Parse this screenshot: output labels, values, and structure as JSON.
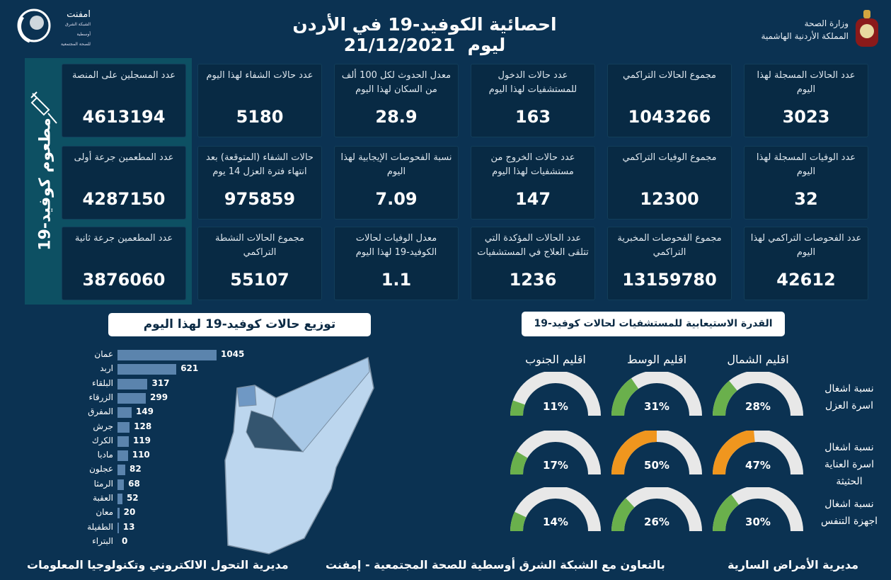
{
  "header": {
    "title": "احصائية الكوفيد-19 في الأردن ليوم",
    "date": "21/12/2021",
    "ministry_line1": "وزارة الصحة",
    "ministry_line2": "المملكة الأردنية الهاشمية",
    "partner_name": "امفنت",
    "partner_sub1": "الشبكة الشرق أوسطية",
    "partner_sub2": "للصحة المجتمعية"
  },
  "stats": [
    {
      "label": "عدد الحالات المسجلة لهذا اليوم",
      "value": "3023"
    },
    {
      "label": "مجموع الحالات التراكمي",
      "value": "1043266"
    },
    {
      "label": "عدد حالات الدخول للمستشفيات لهذا اليوم",
      "value": "163"
    },
    {
      "label": "معدل الحدوث لكل 100 ألف من السكان لهذا اليوم",
      "value": "28.9"
    },
    {
      "label": "عدد حالات الشفاء لهذا اليوم",
      "value": "5180"
    },
    {
      "label": "عدد الوفيات المسجلة لهذا اليوم",
      "value": "32"
    },
    {
      "label": "مجموع الوفيات التراكمي",
      "value": "12300"
    },
    {
      "label": "عدد حالات الخروج من مستشفيات لهذا اليوم",
      "value": "147"
    },
    {
      "label": "نسبة الفحوصات الإيجابية لهذا اليوم",
      "value": "7.09"
    },
    {
      "label": "حالات الشفاء (المتوقعة) بعد انتهاء فترة العزل 14 يوم",
      "value": "975859"
    },
    {
      "label": "عدد الفحوصات التراكمي لهذا اليوم",
      "value": "42612"
    },
    {
      "label": "مجموع الفحوصات المخبرية التراكمي",
      "value": "13159780"
    },
    {
      "label": "عدد الحالات المؤكدة التي تتلقى العلاج في المستشفيات",
      "value": "1236"
    },
    {
      "label": "معدل الوفيات لحالات الكوفيد-19 لهذا اليوم",
      "value": "1.1"
    },
    {
      "label": "مجموع الحالات النشطة التراكمي",
      "value": "55107"
    }
  ],
  "vaccine": {
    "title": "مطعوم كوفيد-19",
    "icon": "syringe-icon",
    "items": [
      {
        "label": "عدد المسجلين على المنصة",
        "value": "4613194"
      },
      {
        "label": "عدد المطعمين جرعة أولى",
        "value": "4287150"
      },
      {
        "label": "عدد المطعمين جرعة ثانية",
        "value": "3876060"
      }
    ]
  },
  "chart_data": [
    {
      "type": "bar",
      "title": "توزيع حالات كوفيد-19 لهذا اليوم",
      "orientation": "horizontal",
      "categories": [
        "عمان",
        "اربد",
        "البلقاء",
        "الزرقاء",
        "المفرق",
        "جرش",
        "الكرك",
        "مادبا",
        "عجلون",
        "الرمثا",
        "العقبة",
        "معان",
        "الطفيلة",
        "البتراء"
      ],
      "values": [
        1045,
        621,
        317,
        299,
        149,
        128,
        119,
        110,
        82,
        68,
        52,
        20,
        13,
        0
      ],
      "color": "#5b84ad"
    },
    {
      "type": "gauge",
      "title": "القدرة الاستيعابية للمستشفيات لحالات كوفيد-19",
      "columns": [
        "اقليم الشمال",
        "اقليم الوسط",
        "اقليم الجنوب"
      ],
      "rows": [
        {
          "label": "نسبة اشغال اسرة العزل",
          "values": [
            28,
            31,
            11
          ]
        },
        {
          "label": "نسبة اشغال اسرة العناية الحثيثة",
          "values": [
            47,
            50,
            17
          ]
        },
        {
          "label": "نسبة اشغال اجهزة التنفس",
          "values": [
            30,
            26,
            14
          ]
        }
      ],
      "unit": "%",
      "colors": {
        "low": "#6ab04c",
        "high": "#f0961e",
        "track": "#e8e8e8"
      }
    }
  ],
  "footer": {
    "right": "مديرية الأمراض السارية",
    "center": "بالتعاون مع الشبكة الشرق أوسطية للصحة المجتمعية - إمفنت",
    "left": "مديرية التحول الالكتروني وتكنولوجيا المعلومات"
  }
}
